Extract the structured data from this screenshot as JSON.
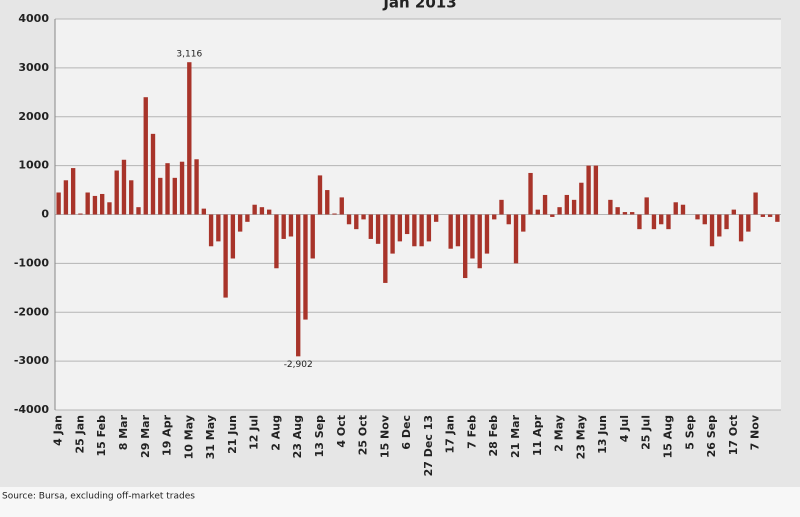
{
  "chart_data": {
    "type": "bar",
    "title": "Jan 2013",
    "source": "Source: Bursa, excluding off-market trades",
    "categories": [
      "4 Jan",
      null,
      null,
      "25 Jan",
      null,
      null,
      "15 Feb",
      null,
      null,
      "8 Mar",
      null,
      null,
      "29 Mar",
      null,
      null,
      "19 Apr",
      null,
      null,
      "10 May",
      null,
      null,
      "31 May",
      null,
      null,
      "21 Jun",
      null,
      null,
      "12 Jul",
      null,
      null,
      "2 Aug",
      null,
      null,
      "23 Aug",
      null,
      null,
      "13 Sep",
      null,
      null,
      "4 Oct",
      null,
      null,
      "25 Oct",
      null,
      null,
      "15 Nov",
      null,
      null,
      "6 Dec",
      null,
      null,
      "27 Dec 13",
      null,
      null,
      "17 Jan",
      null,
      null,
      "7 Feb",
      null,
      null,
      "28 Feb",
      null,
      null,
      "21 Mar",
      null,
      null,
      "11 Apr",
      null,
      null,
      "2 May",
      null,
      null,
      "23 May",
      null,
      null,
      "13 Jun",
      null,
      null,
      "4 Jul",
      null,
      null,
      "25 Jul",
      null,
      null,
      "15 Aug",
      null,
      null,
      "5 Sep",
      null,
      null,
      "26 Sep",
      null,
      null,
      "17 Oct",
      null,
      null,
      "7 Nov",
      null,
      null,
      null
    ],
    "values": [
      450,
      700,
      950,
      20,
      450,
      380,
      420,
      250,
      900,
      1120,
      700,
      150,
      2400,
      1650,
      750,
      1050,
      750,
      1080,
      3116,
      1130,
      120,
      -650,
      -550,
      -1700,
      -900,
      -350,
      -150,
      200,
      150,
      100,
      -1100,
      -500,
      -450,
      -2902,
      -2150,
      -900,
      800,
      500,
      20,
      350,
      -200,
      -300,
      -100,
      -500,
      -600,
      -1400,
      -800,
      -550,
      -400,
      -650,
      -650,
      -550,
      -150,
      0,
      -700,
      -650,
      -1300,
      -900,
      -1100,
      -800,
      -100,
      300,
      -200,
      -1000,
      -350,
      850,
      100,
      400,
      -50,
      150,
      400,
      300,
      650,
      1000,
      1000,
      0,
      300,
      150,
      50,
      50,
      -300,
      350,
      -300,
      -200,
      -300,
      250,
      200,
      0,
      -100,
      -200,
      -650,
      -450,
      -300,
      100,
      -550,
      -350,
      450,
      -50,
      -50,
      -150
    ],
    "value_labels": [
      null,
      null,
      null,
      null,
      null,
      null,
      null,
      null,
      null,
      null,
      null,
      null,
      null,
      null,
      null,
      null,
      null,
      null,
      "3,116",
      null,
      null,
      null,
      null,
      null,
      null,
      null,
      null,
      null,
      null,
      null,
      null,
      null,
      null,
      "-2,902",
      null,
      null,
      null,
      null,
      null,
      null,
      null,
      null,
      null,
      null,
      null,
      null,
      null,
      null,
      null,
      null,
      null,
      null,
      null,
      null,
      null,
      null,
      null,
      null,
      null,
      null,
      null,
      null,
      null,
      null,
      null,
      null,
      null,
      null,
      null,
      null,
      null,
      null,
      null,
      null,
      null,
      null,
      null,
      null,
      null,
      null,
      null,
      null,
      null,
      null,
      null,
      null,
      null,
      null,
      null,
      null,
      null,
      null,
      null,
      null,
      null,
      null,
      null,
      null,
      null,
      null
    ],
    "color": "#a8342a",
    "ylim": [
      -4000,
      4000
    ],
    "yticks": [
      -4000,
      -3000,
      -2000,
      -1000,
      0,
      1000,
      2000,
      3000,
      4000
    ],
    "grid": true
  }
}
